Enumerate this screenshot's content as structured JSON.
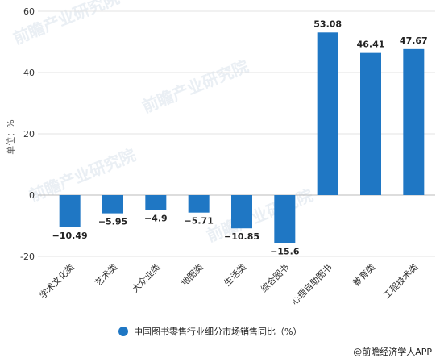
{
  "chart_data": {
    "type": "bar",
    "categories": [
      "学术文化类",
      "艺术类",
      "大众业类",
      "地图类",
      "生活类",
      "综合图书",
      "心理自助图书",
      "教育类",
      "工程技术类"
    ],
    "values": [
      -10.49,
      -5.95,
      -4.9,
      -5.71,
      -10.85,
      -15.6,
      53.08,
      46.41,
      47.67
    ],
    "value_labels": [
      "−10.49",
      "−5.95",
      "−4.9",
      "−5.71",
      "−10.85",
      "−15.6",
      "53.08",
      "46.41",
      "47.67"
    ],
    "series": [
      {
        "name": "中国图书零售行业细分市场销售同比（%）",
        "values": [
          -10.49,
          -5.95,
          -4.9,
          -5.71,
          -10.85,
          -15.6,
          53.08,
          46.41,
          47.67
        ]
      }
    ],
    "ylabel": "单位：%",
    "ylim": [
      -20,
      60
    ],
    "yticks": [
      -20,
      0,
      20,
      40,
      60
    ],
    "grid": "horizontal",
    "legend": "bottom-center",
    "bar_color": "#1f77c4"
  },
  "source": "@前瞻经济学人APP",
  "watermark": [
    "前瞻产业研究院",
    "前瞻产业研究院",
    "前瞻产业研究院",
    "前瞻产业研究院"
  ]
}
